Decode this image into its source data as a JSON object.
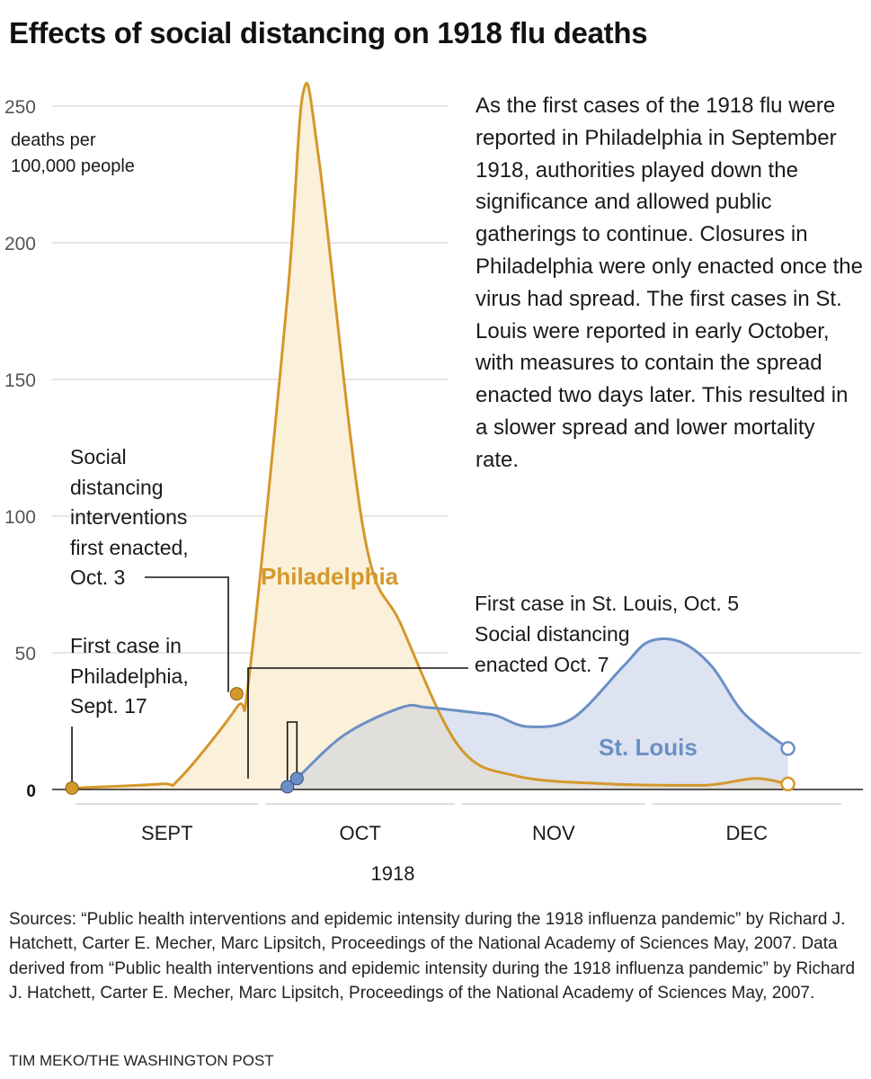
{
  "title": "Effects of social distancing on 1918 flu deaths",
  "description": "As the first cases of the 1918 flu were reported in Philadelphia in September 1918, authorities played down the significance and allowed public gatherings to continue. Closures in Philadelphia were only enacted once the virus had spread. The first cases in St. Louis were reported in early October, with measures to contain the spread enacted two days later. This resulted in a slower spread and lower mortality rate.",
  "annotations": {
    "social_distancing_philly": "Social distancing interventions first enacted, Oct. 3",
    "first_case_philly": "First case in Philadelphia, Sept. 17",
    "first_case_stlouis": "First case in St. Louis, Oct. 5",
    "social_distancing_stlouis": "Social distancing enacted Oct. 7"
  },
  "sources": "Sources: “Public health interventions and epidemic intensity during the 1918 influenza pandemic” by Richard J. Hatchett, Carter E. Mecher, Marc Lipsitch, Proceedings of the National Academy of Sciences May, 2007. Data derived from “Public health interventions and epidemic intensity during the 1918 influenza pandemic” by Richard J. Hatchett, Carter E. Mecher, Marc Lipsitch, Proceedings of the National Academy of Sciences May, 2007.",
  "credit": "TIM MEKO/THE WASHINGTON POST",
  "colors": {
    "philadelphia": "#d4982b",
    "philadelphia_fill": "#fbf0d9",
    "stlouis": "#6b8fc5",
    "stlouis_fill": "#dde3f1",
    "overlap_fill": "#e0dfdb",
    "grid": "#cccccc"
  },
  "chart_data": {
    "type": "area",
    "title": "Effects of social distancing on 1918 flu deaths",
    "ylabel": "deaths per 100,000 people",
    "ylabel_lines": [
      "deaths per",
      "100,000 people"
    ],
    "xlabel": "1918",
    "ylim": [
      0,
      260
    ],
    "yticks": [
      0,
      50,
      100,
      150,
      200,
      250
    ],
    "month_labels": [
      "SEPT",
      "OCT",
      "NOV",
      "DEC"
    ],
    "x_unit": "day of year 1918 (Sept. 1 = 244)",
    "xlim": [
      243,
      365
    ],
    "months": [
      {
        "label": "SEPT",
        "start": 244,
        "end": 273
      },
      {
        "label": "OCT",
        "start": 274,
        "end": 304
      },
      {
        "label": "NOV",
        "start": 305,
        "end": 334
      },
      {
        "label": "DEC",
        "start": 335,
        "end": 365
      }
    ],
    "grid": true,
    "series": [
      {
        "name": "Philadelphia",
        "x": [
          244,
          258,
          261,
          270,
          272,
          278,
          280.5,
          283,
          290,
          296,
          305,
          314,
          329,
          342,
          346,
          352,
          357
        ],
        "values": [
          0.5,
          2,
          4,
          30,
          42,
          180,
          255,
          230,
          95,
          60,
          16,
          5,
          2,
          1.5,
          2,
          4,
          2
        ]
      },
      {
        "name": "St. Louis",
        "x": [
          278,
          279.5,
          287,
          296,
          300,
          308,
          311,
          316,
          323,
          331,
          335,
          340,
          345,
          350,
          357
        ],
        "values": [
          1,
          4,
          20,
          30,
          30,
          28,
          27,
          23,
          26,
          45,
          54,
          54,
          45,
          28,
          15
        ]
      }
    ],
    "markers": [
      {
        "series": "Philadelphia",
        "x": 244,
        "y": 0.5,
        "label": "First case in Philadelphia, Sept. 17"
      },
      {
        "series": "Philadelphia",
        "x": 270,
        "y": 35,
        "label": "Social distancing interventions first enacted, Oct. 3"
      },
      {
        "series": "St. Louis",
        "x": 278,
        "y": 1,
        "label": "First case in St. Louis, Oct. 5"
      },
      {
        "series": "St. Louis",
        "x": 279.5,
        "y": 4,
        "label": "Social distancing enacted Oct. 7"
      }
    ],
    "series_labels": [
      "Philadelphia",
      "St. Louis"
    ]
  }
}
